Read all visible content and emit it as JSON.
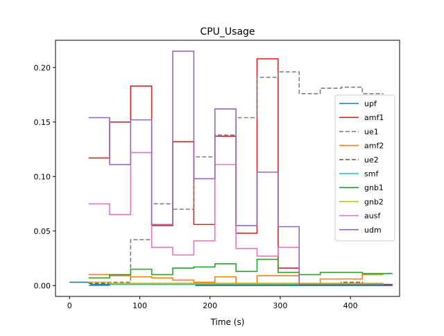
{
  "chart_data": {
    "type": "line",
    "title": "CPU_Usage",
    "xlabel": "Time (s)",
    "ylabel": "",
    "xlim": [
      -20,
      470
    ],
    "ylim": [
      -0.01,
      0.225
    ],
    "xticks": [
      0,
      100,
      200,
      300,
      400
    ],
    "xtick_labels": [
      "0",
      "100",
      "200",
      "300",
      "400"
    ],
    "yticks": [
      0.0,
      0.05,
      0.1,
      0.15,
      0.2
    ],
    "ytick_labels": [
      "0.00",
      "0.05",
      "0.10",
      "0.15",
      "0.20"
    ],
    "grid": false,
    "legend_position": "right",
    "series": [
      {
        "name": "upf",
        "color": "#1f77b4",
        "dashed": false,
        "x": [
          0,
          30,
          30,
          60,
          60,
          90,
          90,
          120,
          120,
          150,
          150,
          180,
          180,
          210,
          210,
          240,
          240,
          270,
          270,
          300,
          300,
          330,
          330,
          360,
          360,
          390,
          390,
          420,
          420,
          450,
          450,
          460
        ],
        "y": [
          0.003,
          0.003,
          0.001,
          0.001,
          0.001,
          0.001,
          0.001,
          0.001,
          0.001,
          0.001,
          0.001,
          0.001,
          0.0,
          0.0,
          0.0,
          0.0,
          0.0,
          0.0,
          0.0,
          0.0,
          0.0,
          0.0,
          0.0,
          0.0,
          0.0,
          0.0,
          0.0,
          0.0,
          0.0,
          0.0,
          0.0,
          0.0
        ]
      },
      {
        "name": "amf1",
        "color": "#d62728",
        "dashed": false,
        "x": [
          27,
          57,
          57,
          87,
          87,
          117,
          117,
          147,
          147,
          177,
          177,
          207,
          207,
          237,
          237,
          267,
          267,
          297,
          297,
          327,
          327,
          357,
          357,
          387,
          387,
          417,
          417,
          447,
          447,
          460
        ],
        "y": [
          0.117,
          0.117,
          0.15,
          0.15,
          0.183,
          0.183,
          0.055,
          0.055,
          0.132,
          0.132,
          0.056,
          0.056,
          0.137,
          0.137,
          0.048,
          0.048,
          0.208,
          0.208,
          0.016,
          0.016,
          0.001,
          0.001,
          0.001,
          0.001,
          0.002,
          0.002,
          0.001,
          0.001,
          0.001,
          0.001
        ]
      },
      {
        "name": "ue1",
        "color": "#7f7f7f",
        "dashed": true,
        "x": [
          27,
          57,
          57,
          87,
          87,
          117,
          117,
          147,
          147,
          177,
          177,
          207,
          207,
          237,
          237,
          267,
          267,
          297,
          297,
          327,
          327,
          357,
          357,
          387,
          387,
          417,
          417,
          447
        ],
        "y": [
          0.003,
          0.003,
          0.003,
          0.003,
          0.042,
          0.042,
          0.075,
          0.075,
          0.07,
          0.07,
          0.118,
          0.118,
          0.138,
          0.138,
          0.154,
          0.154,
          0.191,
          0.191,
          0.196,
          0.196,
          0.176,
          0.176,
          0.181,
          0.181,
          0.182,
          0.182,
          0.176,
          0.176
        ]
      },
      {
        "name": "amf2",
        "color": "#ff7f0e",
        "dashed": false,
        "x": [
          27,
          57,
          57,
          87,
          87,
          117,
          117,
          147,
          147,
          177,
          177,
          207,
          207,
          237,
          237,
          267,
          267,
          297,
          297,
          327,
          327,
          357,
          357,
          387,
          387,
          417,
          417,
          447
        ],
        "y": [
          0.01,
          0.01,
          0.009,
          0.009,
          0.008,
          0.008,
          0.007,
          0.007,
          0.005,
          0.005,
          0.003,
          0.003,
          0.008,
          0.008,
          0.002,
          0.002,
          0.009,
          0.009,
          0.009,
          0.009,
          0.001,
          0.001,
          0.006,
          0.006,
          0.006,
          0.006,
          0.01,
          0.01
        ]
      },
      {
        "name": "ue2",
        "color": "#8c564b",
        "dashed": true,
        "x": [
          27,
          57,
          57,
          87,
          87,
          117,
          117,
          147,
          147,
          177,
          177,
          207,
          207,
          237,
          237,
          267,
          267,
          297,
          297,
          327,
          327,
          357,
          357,
          387,
          387,
          417,
          417,
          447
        ],
        "y": [
          0.002,
          0.002,
          0.002,
          0.002,
          0.002,
          0.002,
          0.002,
          0.002,
          0.002,
          0.002,
          0.002,
          0.002,
          0.002,
          0.002,
          0.002,
          0.002,
          0.002,
          0.002,
          0.002,
          0.002,
          0.002,
          0.002,
          0.002,
          0.002,
          0.003,
          0.003,
          0.002,
          0.002
        ]
      },
      {
        "name": "smf",
        "color": "#17becf",
        "dashed": false,
        "x": [
          27,
          57,
          57,
          87,
          87,
          117,
          117,
          147,
          147,
          177,
          177,
          207,
          207,
          237,
          237,
          267,
          267,
          297,
          297,
          327,
          327,
          357,
          357,
          387,
          387,
          417,
          417,
          447
        ],
        "y": [
          0.0,
          0.0,
          0.001,
          0.001,
          0.001,
          0.001,
          0.001,
          0.001,
          0.001,
          0.001,
          0.001,
          0.001,
          0.001,
          0.001,
          0.001,
          0.001,
          0.001,
          0.001,
          0.001,
          0.001,
          0.001,
          0.001,
          0.001,
          0.001,
          0.001,
          0.001,
          0.001,
          0.001
        ]
      },
      {
        "name": "gnb1",
        "color": "#2ca02c",
        "dashed": false,
        "x": [
          27,
          57,
          57,
          87,
          87,
          117,
          117,
          147,
          147,
          177,
          177,
          207,
          207,
          237,
          237,
          267,
          267,
          297,
          297,
          327,
          327,
          357,
          357,
          387,
          387,
          417,
          417,
          447,
          447,
          460
        ],
        "y": [
          0.007,
          0.007,
          0.01,
          0.01,
          0.015,
          0.015,
          0.01,
          0.01,
          0.016,
          0.016,
          0.017,
          0.017,
          0.02,
          0.02,
          0.013,
          0.013,
          0.024,
          0.024,
          0.012,
          0.012,
          0.01,
          0.01,
          0.012,
          0.012,
          0.012,
          0.012,
          0.011,
          0.011,
          0.011,
          0.011
        ]
      },
      {
        "name": "gnb2",
        "color": "#bcbd22",
        "dashed": false,
        "x": [
          27,
          57,
          57,
          87,
          87,
          117,
          117,
          147,
          147,
          177,
          177,
          207,
          207,
          237,
          237,
          267,
          267,
          297,
          297,
          327,
          327,
          357,
          357,
          387,
          387,
          417,
          417,
          447
        ],
        "y": [
          0.003,
          0.003,
          0.002,
          0.002,
          0.002,
          0.002,
          0.002,
          0.002,
          0.002,
          0.002,
          0.002,
          0.002,
          0.002,
          0.002,
          0.002,
          0.002,
          0.002,
          0.002,
          0.002,
          0.002,
          0.002,
          0.002,
          0.002,
          0.002,
          0.002,
          0.002,
          0.002,
          0.002
        ]
      },
      {
        "name": "ausf",
        "color": "#e377c2",
        "dashed": false,
        "x": [
          27,
          57,
          57,
          87,
          87,
          117,
          117,
          147,
          147,
          177,
          177,
          207,
          207,
          237,
          237,
          267,
          267,
          297,
          297,
          327,
          327,
          357,
          357,
          387,
          387,
          417,
          417,
          447
        ],
        "y": [
          0.075,
          0.075,
          0.065,
          0.065,
          0.122,
          0.122,
          0.035,
          0.035,
          0.028,
          0.028,
          0.041,
          0.041,
          0.111,
          0.111,
          0.034,
          0.034,
          0.027,
          0.027,
          0.035,
          0.035,
          0.001,
          0.001,
          0.001,
          0.001,
          0.001,
          0.001,
          0.001,
          0.001
        ]
      },
      {
        "name": "udm",
        "color": "#9467bd",
        "dashed": false,
        "x": [
          27,
          57,
          57,
          87,
          87,
          117,
          117,
          147,
          147,
          177,
          177,
          207,
          207,
          237,
          237,
          267,
          267,
          297,
          297,
          327,
          327,
          357,
          357,
          387,
          387,
          417,
          417,
          447
        ],
        "y": [
          0.154,
          0.154,
          0.111,
          0.111,
          0.152,
          0.152,
          0.056,
          0.056,
          0.215,
          0.215,
          0.098,
          0.098,
          0.162,
          0.162,
          0.055,
          0.055,
          0.104,
          0.104,
          0.054,
          0.054,
          0.001,
          0.001,
          0.001,
          0.001,
          0.001,
          0.001,
          0.001,
          0.001
        ]
      }
    ]
  }
}
